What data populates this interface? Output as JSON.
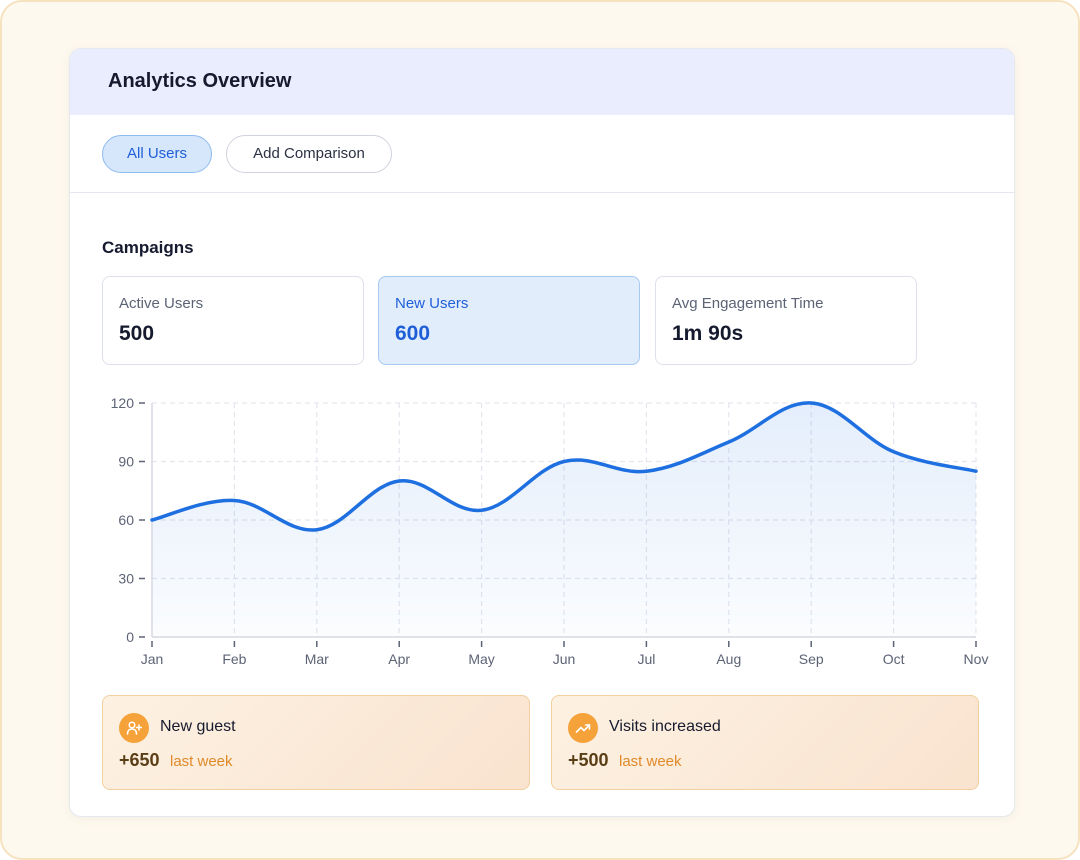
{
  "header": {
    "title": "Analytics Overview"
  },
  "filters": {
    "all_users": "All Users",
    "add_comparison": "Add Comparison"
  },
  "section": {
    "title": "Campaigns"
  },
  "stats": [
    {
      "label": "Active Users",
      "value": "500"
    },
    {
      "label": "New Users",
      "value": "600",
      "selected": true
    },
    {
      "label": "Avg Engagement Time",
      "value": "1m 90s"
    }
  ],
  "notes": [
    {
      "title": "New guest",
      "value": "+650",
      "sub": "last week",
      "icon": "user-plus-icon"
    },
    {
      "title": "Visits increased",
      "value": "+500",
      "sub": "last week",
      "icon": "trending-up-icon"
    }
  ],
  "colors": {
    "accent": "#1e6fe0",
    "note_icon": "#f6a23a",
    "header_bg": "#eaedfd"
  },
  "chart_data": {
    "type": "area",
    "categories": [
      "Jan",
      "Feb",
      "Mar",
      "Apr",
      "May",
      "Jun",
      "Jul",
      "Aug",
      "Sep",
      "Oct",
      "Nov"
    ],
    "series": [
      {
        "values": [
          60,
          70,
          55,
          80,
          65,
          90,
          85,
          100,
          120,
          95,
          85
        ]
      }
    ],
    "y_ticks": [
      0,
      30,
      60,
      90,
      120
    ],
    "ylim": [
      0,
      120
    ],
    "grid": true
  }
}
